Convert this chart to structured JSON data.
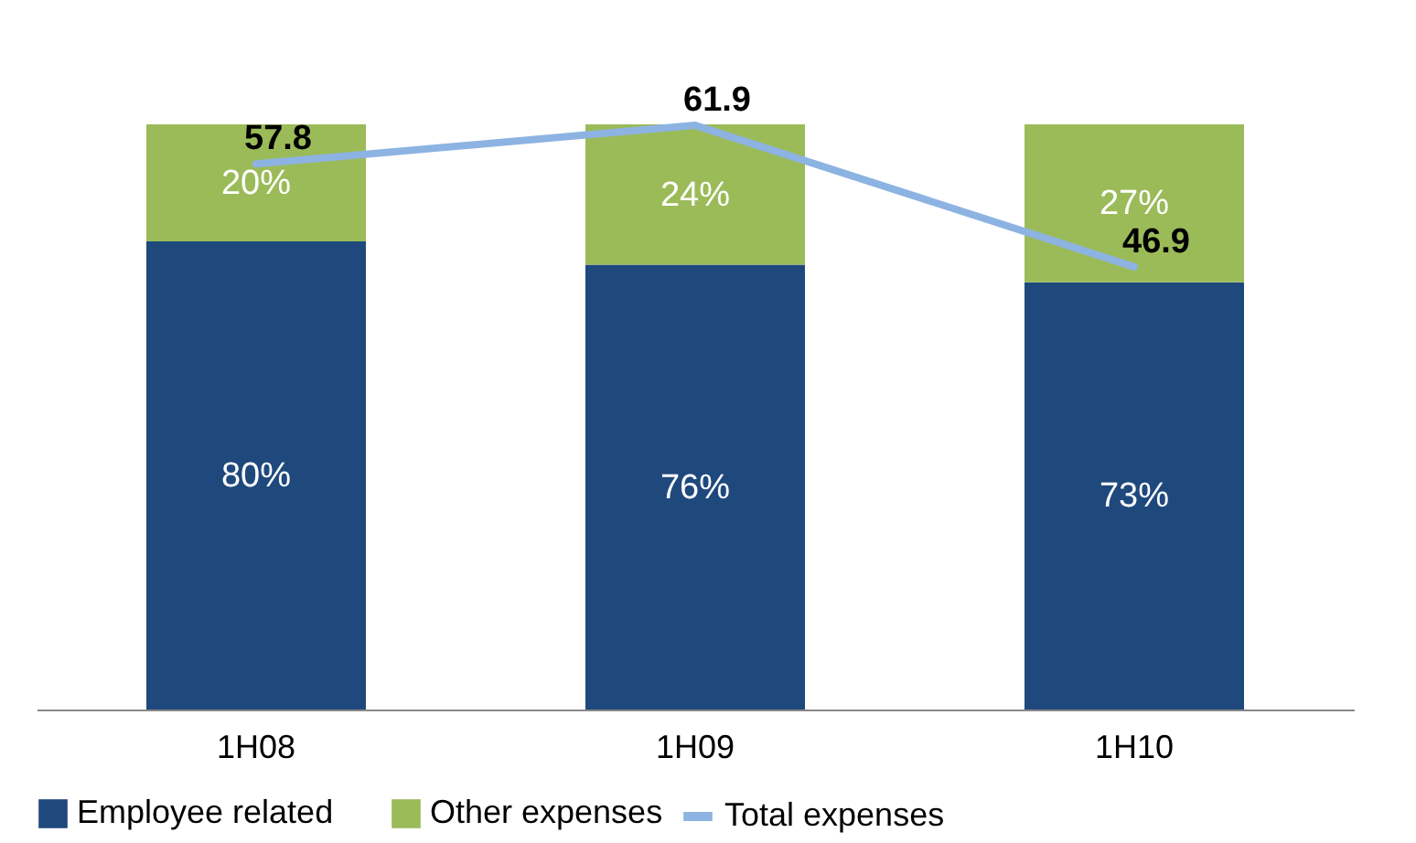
{
  "chart_data": {
    "type": "bar",
    "stacked": true,
    "categories": [
      "1H08",
      "1H09",
      "1H10"
    ],
    "series": [
      {
        "name": "Employee related",
        "color": "#1f497d",
        "values": [
          80,
          76,
          73
        ],
        "value_labels": [
          "80%",
          "76%",
          "73%"
        ]
      },
      {
        "name": "Other expenses",
        "color": "#9bbb59",
        "values": [
          20,
          24,
          27
        ],
        "value_labels": [
          "20%",
          "24%",
          "27%"
        ]
      },
      {
        "name": "Total expenses",
        "type": "line",
        "axis": "y2",
        "color": "#8db3e2",
        "values": [
          57.8,
          61.9,
          46.9
        ],
        "data_labels": true
      }
    ],
    "ylim": [
      0,
      100
    ],
    "y2lim": [
      0,
      62
    ],
    "tick_labels": "x",
    "grid": false,
    "legend": "bottom",
    "marker": "none",
    "line_style": "solid"
  }
}
